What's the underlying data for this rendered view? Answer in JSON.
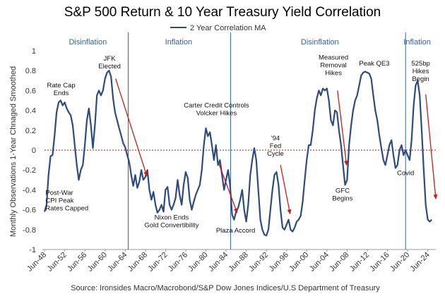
{
  "chart_data": {
    "type": "line",
    "title": "S&P 500 Return & 10 Year Treasury Yield Correlation",
    "ylabel": "Monthly Observations  1-Year Chnaged Smoothed",
    "ylim": [
      -1,
      1
    ],
    "yticks": [
      "1",
      "0.8",
      "0.6",
      "0.4",
      "0.2",
      "0",
      "-0.2",
      "-0.4",
      "-0.6",
      "-0.8",
      "-1"
    ],
    "xlim": [
      1948.4,
      2026.0
    ],
    "xticks": [
      "Jun-48",
      "Jun-52",
      "Jun-56",
      "Jun-60",
      "Jun-64",
      "Jun-68",
      "Jun-72",
      "Jun-76",
      "Jun-80",
      "Jun-84",
      "Jun-88",
      "Jun-92",
      "Jun-96",
      "Jun-00",
      "Jun-04",
      "Jun-08",
      "Jun-12",
      "Jun-16",
      "Jun-20",
      "Jun-24"
    ],
    "grid": false,
    "legend": "top-center",
    "series": [
      {
        "name": "2 Year Correlation MA",
        "color": "#2e4b7e",
        "points": [
          [
            1948.4,
            -0.62
          ],
          [
            1948.8,
            -0.55
          ],
          [
            1949.2,
            -0.25
          ],
          [
            1949.6,
            -0.06
          ],
          [
            1950.0,
            -0.05
          ],
          [
            1950.4,
            0.15
          ],
          [
            1950.8,
            0.38
          ],
          [
            1951.2,
            0.48
          ],
          [
            1951.6,
            0.5
          ],
          [
            1952.0,
            0.45
          ],
          [
            1952.4,
            0.48
          ],
          [
            1952.8,
            0.42
          ],
          [
            1953.2,
            0.38
          ],
          [
            1953.6,
            0.35
          ],
          [
            1954.0,
            0.25
          ],
          [
            1954.4,
            0.05
          ],
          [
            1954.8,
            -0.15
          ],
          [
            1955.2,
            -0.3
          ],
          [
            1955.6,
            -0.2
          ],
          [
            1956.0,
            -0.15
          ],
          [
            1956.4,
            0.05
          ],
          [
            1956.8,
            0.3
          ],
          [
            1957.2,
            0.42
          ],
          [
            1957.6,
            0.25
          ],
          [
            1958.0,
            0.02
          ],
          [
            1958.4,
            0.25
          ],
          [
            1958.8,
            0.55
          ],
          [
            1959.2,
            0.6
          ],
          [
            1959.6,
            0.55
          ],
          [
            1960.0,
            0.6
          ],
          [
            1960.4,
            0.72
          ],
          [
            1960.8,
            0.78
          ],
          [
            1961.2,
            0.8
          ],
          [
            1961.6,
            0.74
          ],
          [
            1962.0,
            0.52
          ],
          [
            1962.4,
            0.38
          ],
          [
            1962.8,
            0.3
          ],
          [
            1963.2,
            0.22
          ],
          [
            1963.6,
            0.15
          ],
          [
            1964.0,
            0.07
          ],
          [
            1964.4,
            0.03
          ],
          [
            1964.8,
            -0.05
          ],
          [
            1965.2,
            -0.12
          ],
          [
            1965.6,
            -0.25
          ],
          [
            1966.0,
            -0.36
          ],
          [
            1966.4,
            -0.25
          ],
          [
            1966.8,
            -0.38
          ],
          [
            1967.2,
            -0.32
          ],
          [
            1967.6,
            -0.2
          ],
          [
            1968.0,
            -0.3
          ],
          [
            1968.4,
            -0.27
          ],
          [
            1968.8,
            -0.2
          ],
          [
            1969.2,
            -0.4
          ],
          [
            1969.6,
            -0.5
          ],
          [
            1970.0,
            -0.42
          ],
          [
            1970.4,
            -0.55
          ],
          [
            1970.8,
            -0.63
          ],
          [
            1971.2,
            -0.6
          ],
          [
            1971.6,
            -0.55
          ],
          [
            1972.0,
            -0.62
          ],
          [
            1972.4,
            -0.4
          ],
          [
            1972.8,
            -0.37
          ],
          [
            1973.2,
            -0.55
          ],
          [
            1973.6,
            -0.6
          ],
          [
            1974.0,
            -0.55
          ],
          [
            1974.4,
            -0.48
          ],
          [
            1974.8,
            -0.3
          ],
          [
            1975.2,
            -0.45
          ],
          [
            1975.6,
            -0.55
          ],
          [
            1976.0,
            -0.35
          ],
          [
            1976.4,
            -0.22
          ],
          [
            1976.8,
            -0.28
          ],
          [
            1977.2,
            -0.5
          ],
          [
            1977.6,
            -0.6
          ],
          [
            1978.0,
            -0.52
          ],
          [
            1978.4,
            -0.45
          ],
          [
            1978.8,
            -0.4
          ],
          [
            1979.2,
            -0.35
          ],
          [
            1979.6,
            -0.2
          ],
          [
            1980.0,
            0.05
          ],
          [
            1980.4,
            0.22
          ],
          [
            1980.8,
            0.14
          ],
          [
            1981.2,
            0.18
          ],
          [
            1981.6,
            0.05
          ],
          [
            1982.0,
            -0.1
          ],
          [
            1982.4,
            0.05
          ],
          [
            1982.8,
            -0.15
          ],
          [
            1983.2,
            -0.1
          ],
          [
            1983.6,
            -0.25
          ],
          [
            1984.0,
            -0.4
          ],
          [
            1984.4,
            -0.3
          ],
          [
            1984.8,
            -0.2
          ],
          [
            1985.2,
            -0.35
          ],
          [
            1985.6,
            -0.65
          ],
          [
            1986.0,
            -0.7
          ],
          [
            1986.4,
            -0.62
          ],
          [
            1986.8,
            -0.58
          ],
          [
            1987.2,
            -0.5
          ],
          [
            1987.6,
            -0.4
          ],
          [
            1988.0,
            -0.6
          ],
          [
            1988.4,
            -0.72
          ],
          [
            1988.8,
            -0.55
          ],
          [
            1989.2,
            -0.25
          ],
          [
            1989.6,
            -0.1
          ],
          [
            1990.0,
            0.02
          ],
          [
            1990.4,
            -0.1
          ],
          [
            1990.8,
            -0.4
          ],
          [
            1991.2,
            -0.7
          ],
          [
            1991.6,
            -0.8
          ],
          [
            1992.0,
            -0.85
          ],
          [
            1992.4,
            -0.86
          ],
          [
            1992.8,
            -0.8
          ],
          [
            1993.2,
            -0.6
          ],
          [
            1993.6,
            -0.4
          ],
          [
            1994.0,
            -0.25
          ],
          [
            1994.4,
            -0.22
          ],
          [
            1994.8,
            -0.35
          ],
          [
            1995.2,
            -0.6
          ],
          [
            1995.6,
            -0.78
          ],
          [
            1996.0,
            -0.8
          ],
          [
            1996.4,
            -0.75
          ],
          [
            1996.8,
            -0.7
          ],
          [
            1997.2,
            -0.8
          ],
          [
            1997.6,
            -0.82
          ],
          [
            1998.0,
            -0.78
          ],
          [
            1998.4,
            -0.72
          ],
          [
            1998.8,
            -0.7
          ],
          [
            1999.2,
            -0.66
          ],
          [
            1999.6,
            -0.52
          ],
          [
            2000.0,
            -0.3
          ],
          [
            2000.4,
            -0.1
          ],
          [
            2000.8,
            0.05
          ],
          [
            2001.2,
            0.05
          ],
          [
            2001.6,
            0.2
          ],
          [
            2002.0,
            0.4
          ],
          [
            2002.4,
            0.52
          ],
          [
            2002.8,
            0.6
          ],
          [
            2003.2,
            0.55
          ],
          [
            2003.6,
            0.62
          ],
          [
            2004.0,
            0.6
          ],
          [
            2004.4,
            0.62
          ],
          [
            2004.8,
            0.5
          ],
          [
            2005.2,
            0.3
          ],
          [
            2005.6,
            0.25
          ],
          [
            2006.0,
            0.4
          ],
          [
            2006.4,
            0.38
          ],
          [
            2006.8,
            0.2
          ],
          [
            2007.2,
            0.05
          ],
          [
            2007.6,
            -0.15
          ],
          [
            2008.0,
            -0.35
          ],
          [
            2008.4,
            -0.3
          ],
          [
            2008.8,
            0.05
          ],
          [
            2009.2,
            0.25
          ],
          [
            2009.6,
            0.4
          ],
          [
            2010.0,
            0.5
          ],
          [
            2010.4,
            0.55
          ],
          [
            2010.8,
            0.65
          ],
          [
            2011.2,
            0.75
          ],
          [
            2011.6,
            0.78
          ],
          [
            2012.0,
            0.79
          ],
          [
            2012.4,
            0.78
          ],
          [
            2012.8,
            0.77
          ],
          [
            2013.2,
            0.72
          ],
          [
            2013.6,
            0.55
          ],
          [
            2014.0,
            0.4
          ],
          [
            2014.4,
            0.3
          ],
          [
            2014.8,
            0.15
          ],
          [
            2015.2,
            0.02
          ],
          [
            2015.6,
            -0.1
          ],
          [
            2016.0,
            -0.15
          ],
          [
            2016.4,
            -0.05
          ],
          [
            2016.8,
            0.05
          ],
          [
            2017.2,
            0.1
          ],
          [
            2017.6,
            -0.05
          ],
          [
            2018.0,
            -0.18
          ],
          [
            2018.4,
            -0.15
          ],
          [
            2018.8,
            0.0
          ],
          [
            2019.2,
            0.05
          ],
          [
            2019.6,
            -0.05
          ],
          [
            2020.0,
            0.0
          ],
          [
            2020.4,
            -0.05
          ],
          [
            2020.8,
            -0.1
          ],
          [
            2021.2,
            0.1
          ],
          [
            2021.6,
            0.45
          ],
          [
            2022.0,
            0.65
          ],
          [
            2022.4,
            0.7
          ],
          [
            2022.8,
            0.55
          ],
          [
            2023.2,
            0.2
          ],
          [
            2023.6,
            -0.2
          ],
          [
            2024.0,
            -0.55
          ],
          [
            2024.4,
            -0.7
          ],
          [
            2024.8,
            -0.72
          ],
          [
            2025.2,
            -0.7
          ]
        ]
      }
    ],
    "reference_line": {
      "y": 0,
      "color": "#b01515",
      "style": "dotted"
    },
    "regime_dividers": [
      1965.0,
      1985.3,
      2020.0
    ],
    "regimes": [
      {
        "label": "Disinflation",
        "x": 1957.0
      },
      {
        "label": "Inflation",
        "x": 1975.0
      },
      {
        "label": "Disinflation",
        "x": 2003.0
      },
      {
        "label": "Inflation",
        "x": 2022.3
      }
    ],
    "annotations": [
      {
        "lines": [
          "Rate Cap",
          "Ends"
        ],
        "x": 1951.7,
        "y": 0.63
      },
      {
        "lines": [
          "JFK",
          "Elected"
        ],
        "x": 1961.3,
        "y": 0.9
      },
      {
        "lines": [
          "Carter Credit Controls",
          "Volcker Hikes"
        ],
        "x": 1982.5,
        "y": 0.43
      },
      {
        "lines": [
          "'94",
          "Fed",
          "Cycle"
        ],
        "x": 1994.2,
        "y": 0.1
      },
      {
        "lines": [
          "Measured",
          "Removal",
          "Hikes"
        ],
        "x": 2005.7,
        "y": 0.91
      },
      {
        "lines": [
          "Peak QE3"
        ],
        "x": 2013.8,
        "y": 0.85
      },
      {
        "lines": [
          "525bp",
          "Hikes",
          "Begin"
        ],
        "x": 2023.0,
        "y": 0.85
      },
      {
        "lines": [
          "Post-War",
          "CPI Peak",
          "Rates Capped"
        ],
        "x": 1948.6,
        "y": -0.45,
        "anchor": "start"
      },
      {
        "lines": [
          "Nixon Ends",
          "Gold Convertibility"
        ],
        "x": 1973.6,
        "y": -0.7
      },
      {
        "lines": [
          "Plaza Accord"
        ],
        "x": 1986.3,
        "y": -0.83
      },
      {
        "lines": [
          "GFC",
          "Begins"
        ],
        "x": 2007.5,
        "y": -0.43
      },
      {
        "lines": [
          "Covid"
        ],
        "x": 2020.0,
        "y": -0.25
      }
    ],
    "arrows": [
      {
        "from": [
          1962.5,
          0.72
        ],
        "to": [
          1968.7,
          -0.26
        ]
      },
      {
        "from": [
          1983.0,
          -0.14
        ],
        "to": [
          1986.6,
          -0.63
        ]
      },
      {
        "from": [
          1995.2,
          -0.15
        ],
        "to": [
          1997.1,
          -0.64
        ]
      },
      {
        "from": [
          2006.5,
          0.6
        ],
        "to": [
          2008.3,
          -0.15
        ]
      },
      {
        "from": [
          2024.0,
          0.56
        ],
        "to": [
          2026.0,
          -0.49
        ]
      }
    ],
    "arrow_color": "#cc1b1b",
    "source": "Source: Ironsides Macro/Macrobond/S&P Dow Jones Indices/U.S Department of Treasury"
  }
}
